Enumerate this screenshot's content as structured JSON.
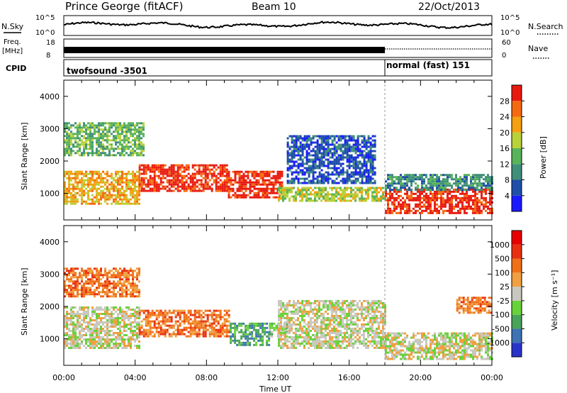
{
  "header": {
    "station": "Prince George (fitACF)",
    "beam": "Beam 10",
    "date": "22/Oct/2013"
  },
  "top_panels": {
    "nsky_label": "N.Sky",
    "nsky_ticks": [
      "10^5",
      "10^0"
    ],
    "nsearch_label": "N.Search",
    "nsearch_ticks": [
      "10^5",
      "10^0"
    ],
    "freq_label": "Freq.",
    "freq_unit": "[MHz]",
    "freq_ticks": [
      "18",
      "8"
    ],
    "nave_label": "Nave",
    "nave_ticks": [
      "60",
      "0"
    ],
    "cpid_label": "CPID",
    "cpid_segments": [
      {
        "name": "twofsound -3501",
        "start_hour": 0,
        "end_hour": 18
      },
      {
        "name": "normal (fast) 151",
        "start_hour": 18,
        "end_hour": 24
      }
    ]
  },
  "chart_data": [
    {
      "type": "heatmap",
      "title": "",
      "xlabel": "Time UT",
      "ylabel": "Slant Range [km]",
      "xlim": [
        0,
        24
      ],
      "ylim": [
        180,
        4500
      ],
      "x_ticks": [
        "00:00",
        "04:00",
        "08:00",
        "12:00",
        "16:00",
        "20:00",
        "00:00"
      ],
      "y_ticks": [
        "1000",
        "2000",
        "3000",
        "4000"
      ],
      "colorbar": {
        "label": "Power [dB]",
        "ticks": [
          "4",
          "8",
          "12",
          "16",
          "20",
          "24",
          "28"
        ],
        "colors": [
          "#1a1aff",
          "#1f4fa8",
          "#3f8f7a",
          "#59b35a",
          "#b9d23a",
          "#f4a010",
          "#f56a10",
          "#e81a10"
        ]
      },
      "regions": [
        {
          "start": 0.0,
          "end": 4.2,
          "range": [
            700,
            1700
          ],
          "level": 5
        },
        {
          "start": 0.0,
          "end": 4.5,
          "range": [
            2200,
            3200
          ],
          "level": 3
        },
        {
          "start": 4.2,
          "end": 9.2,
          "range": [
            1050,
            1900
          ],
          "level": 7
        },
        {
          "start": 9.2,
          "end": 12.2,
          "range": [
            900,
            1700
          ],
          "level": 7
        },
        {
          "start": 12.0,
          "end": 18.0,
          "range": [
            800,
            1200
          ],
          "level": 4
        },
        {
          "start": 12.5,
          "end": 17.5,
          "range": [
            1300,
            2800
          ],
          "level": 1
        },
        {
          "start": 18.0,
          "end": 24.0,
          "range": [
            400,
            1150
          ],
          "level": 7
        },
        {
          "start": 18.0,
          "end": 24.0,
          "range": [
            1100,
            1600
          ],
          "level": 2
        }
      ]
    },
    {
      "type": "heatmap",
      "title": "",
      "xlabel": "Time UT",
      "ylabel": "Slant Range [km]",
      "xlim": [
        0,
        24
      ],
      "ylim": [
        180,
        4500
      ],
      "x_ticks": [
        "00:00",
        "04:00",
        "08:00",
        "12:00",
        "16:00",
        "20:00",
        "00:00"
      ],
      "y_ticks": [
        "1000",
        "2000",
        "3000",
        "4000"
      ],
      "colorbar": {
        "label": "Velocity [m s⁻¹]",
        "ticks": [
          "1000",
          "500",
          "100",
          "25",
          "-25",
          "-100",
          "-500",
          "-1000"
        ],
        "colors": [
          "#2a34c8",
          "#3e73b4",
          "#4aa35a",
          "#68d23a",
          "#c8c8c0",
          "#f0a040",
          "#f07018",
          "#e83010",
          "#e80000"
        ]
      },
      "regions": [
        {
          "start": 0.0,
          "end": 4.2,
          "range": [
            2300,
            3200
          ],
          "level": 6
        },
        {
          "start": 0.0,
          "end": 4.2,
          "range": [
            700,
            2000
          ],
          "level": 4
        },
        {
          "start": 4.2,
          "end": 9.3,
          "range": [
            1100,
            1900
          ],
          "level": 6
        },
        {
          "start": 9.3,
          "end": 11.5,
          "range": [
            800,
            1500
          ],
          "level": 2
        },
        {
          "start": 11.5,
          "end": 12.5,
          "range": [
            1100,
            1500
          ],
          "level": 3
        },
        {
          "start": 12.0,
          "end": 18.0,
          "range": [
            700,
            2200
          ],
          "level": 4
        },
        {
          "start": 18.0,
          "end": 24.0,
          "range": [
            400,
            1200
          ],
          "level": 4
        },
        {
          "start": 22.0,
          "end": 24.0,
          "range": [
            1800,
            2300
          ],
          "level": 6
        }
      ]
    }
  ]
}
